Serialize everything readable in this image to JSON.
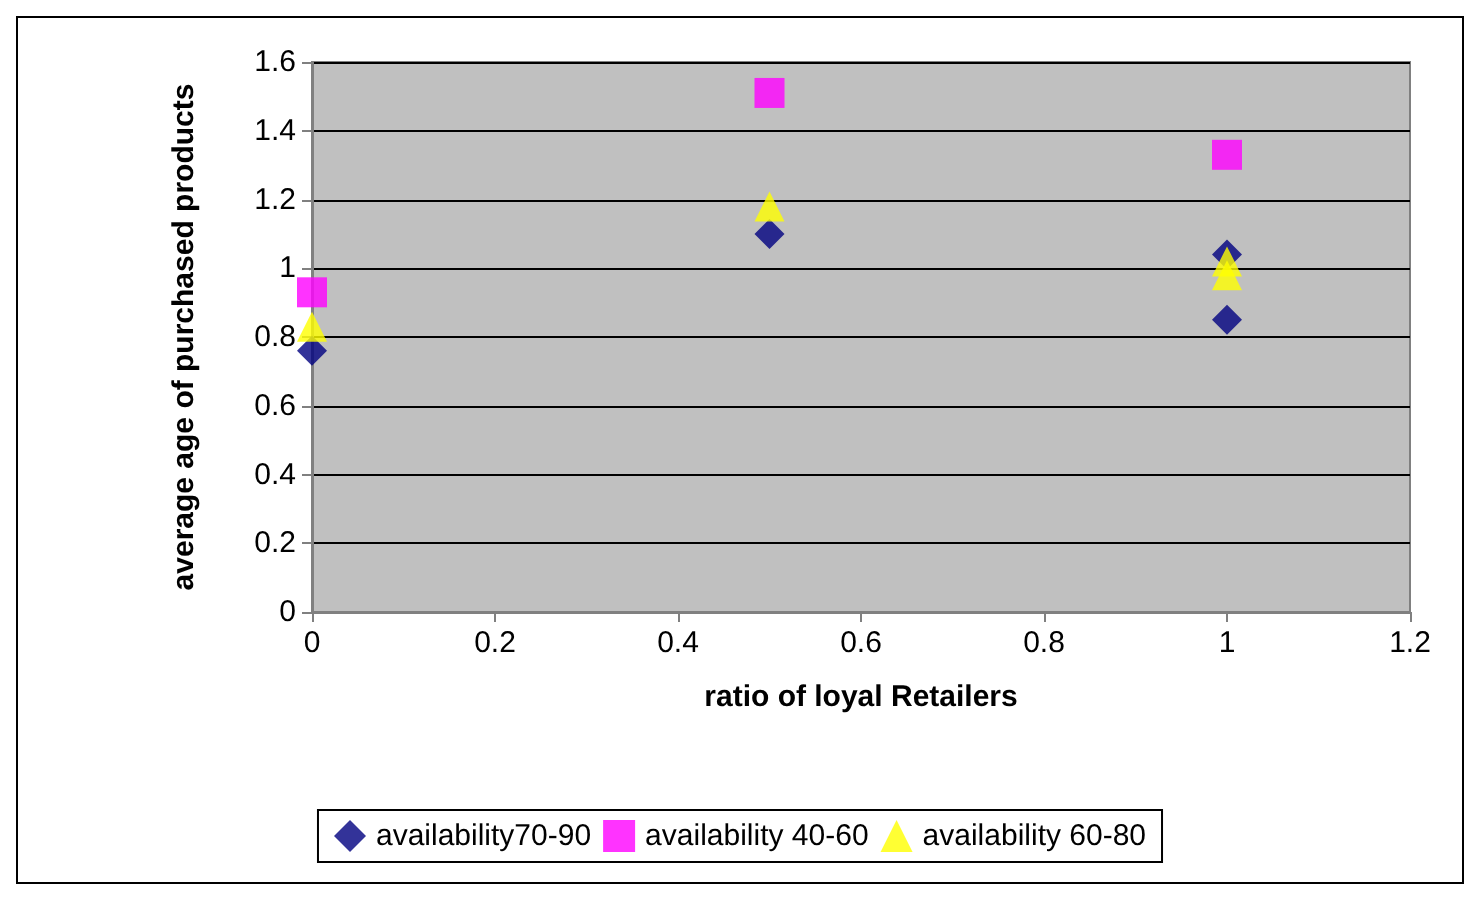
{
  "chart_data": {
    "type": "scatter",
    "xlabel": "ratio of loyal Retailers",
    "ylabel": "average age of purchased products",
    "xlim": [
      0,
      1.2
    ],
    "xticks": [
      0,
      0.2,
      0.4,
      0.6,
      0.8,
      1,
      1.2
    ],
    "ylim": [
      0,
      1.6
    ],
    "yticks": [
      0,
      0.2,
      0.4,
      0.6,
      0.8,
      1,
      1.2,
      1.4,
      1.6
    ],
    "grid": "y",
    "legend": "bottom",
    "series": [
      {
        "name": "availability70-90",
        "color": "#000080",
        "marker": "diamond",
        "x": [
          0,
          0.5,
          1,
          1
        ],
        "values": [
          0.76,
          1.1,
          0.85,
          1.04
        ]
      },
      {
        "name": "availability 40-60",
        "color": "#ff00ff",
        "marker": "square",
        "x": [
          0,
          0.5,
          1
        ],
        "values": [
          0.93,
          1.51,
          1.33
        ]
      },
      {
        "name": "availability 60-80",
        "color": "#ffff00",
        "marker": "triangle",
        "x": [
          0,
          0.5,
          1,
          1
        ],
        "values": [
          0.83,
          1.18,
          0.98,
          1.02
        ]
      }
    ]
  }
}
